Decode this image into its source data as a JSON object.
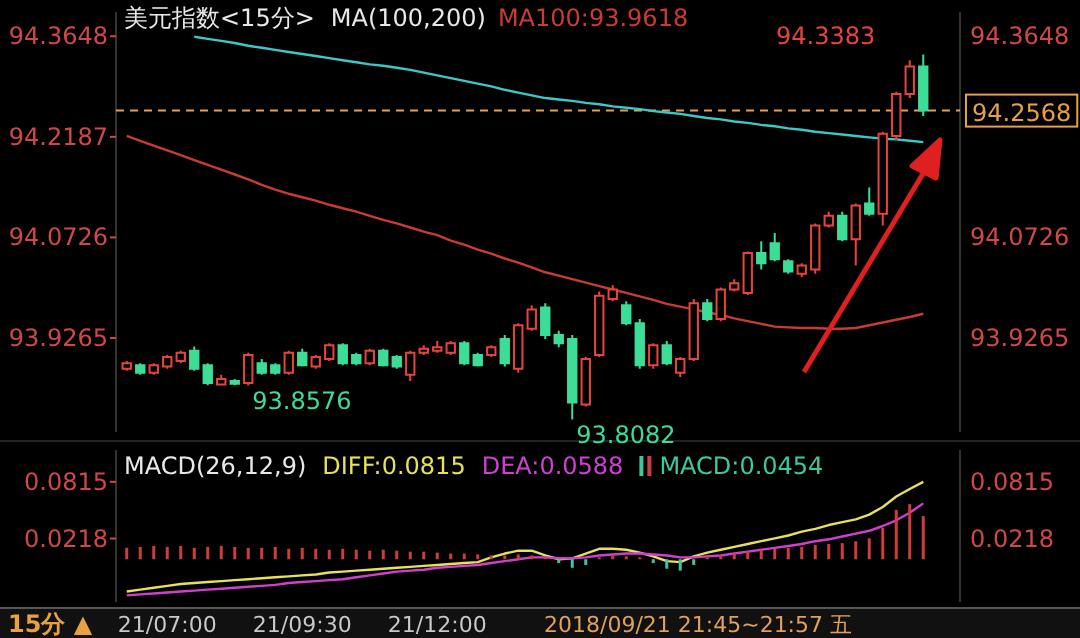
{
  "chart_data": [
    {
      "type": "candlestick",
      "title": "美元指数<15分>",
      "subtitle": "MA(100,200)",
      "tick_labels": "y",
      "categories": [
        null,
        null,
        null,
        null,
        null,
        null,
        null,
        null,
        null,
        null,
        null,
        null,
        null,
        null,
        null,
        null,
        null,
        null,
        null,
        null,
        null,
        null,
        null,
        null,
        null,
        null,
        null,
        null,
        null,
        null,
        null,
        null,
        null,
        null,
        null,
        null,
        null,
        null,
        null,
        null,
        null,
        null,
        null,
        null,
        null,
        null,
        null,
        null,
        null,
        null,
        null,
        null,
        null,
        null,
        null,
        null,
        null,
        null,
        null,
        null
      ],
      "ohlc": [
        [
          93.882,
          93.893,
          93.879,
          93.89
        ],
        [
          93.887,
          93.89,
          93.873,
          93.876
        ],
        [
          93.876,
          93.89,
          93.873,
          93.887
        ],
        [
          93.885,
          93.902,
          93.882,
          93.899
        ],
        [
          93.893,
          93.908,
          93.89,
          93.905
        ],
        [
          93.908,
          93.914,
          93.879,
          93.882
        ],
        [
          93.887,
          93.89,
          93.858,
          93.861
        ],
        [
          93.859,
          93.873,
          93.858,
          93.867
        ],
        [
          93.864,
          93.867,
          93.858,
          93.86
        ],
        [
          93.861,
          93.905,
          93.8576,
          93.902
        ],
        [
          93.89,
          93.896,
          93.873,
          93.876
        ],
        [
          93.887,
          93.89,
          93.873,
          93.876
        ],
        [
          93.876,
          93.908,
          93.873,
          93.905
        ],
        [
          93.905,
          93.911,
          93.885,
          93.887
        ],
        [
          93.885,
          93.902,
          93.882,
          93.899
        ],
        [
          93.896,
          93.919,
          93.893,
          93.916
        ],
        [
          93.916,
          93.919,
          93.887,
          93.89
        ],
        [
          93.902,
          93.905,
          93.887,
          93.89
        ],
        [
          93.89,
          93.911,
          93.887,
          93.908
        ],
        [
          93.908,
          93.911,
          93.885,
          93.887
        ],
        [
          93.899,
          93.902,
          93.882,
          93.885
        ],
        [
          93.873,
          93.908,
          93.864,
          93.905
        ],
        [
          93.905,
          93.916,
          93.902,
          93.911
        ],
        [
          93.908,
          93.922,
          93.905,
          93.913
        ],
        [
          93.905,
          93.922,
          93.902,
          93.919
        ],
        [
          93.919,
          93.922,
          93.887,
          93.89
        ],
        [
          93.902,
          93.905,
          93.885,
          93.887
        ],
        [
          93.902,
          93.916,
          93.899,
          93.913
        ],
        [
          93.925,
          93.931,
          93.885,
          93.89
        ],
        [
          93.882,
          93.948,
          93.876,
          93.945
        ],
        [
          93.94,
          93.974,
          93.937,
          93.968
        ],
        [
          93.971,
          93.977,
          93.925,
          93.931
        ],
        [
          93.931,
          93.937,
          93.913,
          93.919
        ],
        [
          93.925,
          93.931,
          93.8082,
          93.833
        ],
        [
          93.83,
          93.899,
          93.827,
          93.896
        ],
        [
          93.902,
          93.994,
          93.899,
          93.988
        ],
        [
          93.983,
          94.003,
          93.98,
          93.997
        ],
        [
          93.974,
          93.98,
          93.945,
          93.948
        ],
        [
          93.948,
          93.954,
          93.882,
          93.887
        ],
        [
          93.887,
          93.919,
          93.882,
          93.916
        ],
        [
          93.916,
          93.922,
          93.887,
          93.89
        ],
        [
          93.876,
          93.899,
          93.87,
          93.896
        ],
        [
          93.896,
          93.983,
          93.893,
          93.977
        ],
        [
          93.977,
          93.983,
          93.951,
          93.954
        ],
        [
          93.954,
          94.0,
          93.951,
          93.997
        ],
        [
          93.997,
          94.012,
          93.994,
          94.006
        ],
        [
          93.992,
          94.052,
          93.989,
          94.05
        ],
        [
          94.05,
          94.067,
          94.026,
          94.035
        ],
        [
          94.064,
          94.079,
          94.038,
          94.041
        ],
        [
          94.038,
          94.041,
          94.02,
          94.023
        ],
        [
          94.02,
          94.035,
          94.015,
          94.032
        ],
        [
          94.026,
          94.093,
          94.02,
          94.09
        ],
        [
          94.09,
          94.11,
          94.087,
          94.104
        ],
        [
          94.104,
          94.11,
          94.067,
          94.07
        ],
        [
          94.07,
          94.122,
          94.032,
          94.119
        ],
        [
          94.122,
          94.145,
          94.104,
          94.107
        ],
        [
          94.107,
          94.226,
          94.09,
          94.223
        ],
        [
          94.22,
          94.284,
          94.214,
          94.281
        ],
        [
          94.281,
          94.33,
          94.275,
          94.321
        ],
        [
          94.321,
          94.3383,
          94.249,
          94.2568
        ]
      ],
      "colors": [
        "#e8443c",
        "#3ddc97",
        "#e8443c",
        "#e8443c",
        "#e8443c",
        "#3ddc97",
        "#3ddc97",
        "#e8443c",
        "#3ddc97",
        "#e8443c",
        "#3ddc97",
        "#3ddc97",
        "#e8443c",
        "#3ddc97",
        "#e8443c",
        "#e8443c",
        "#3ddc97",
        "#3ddc97",
        "#e8443c",
        "#3ddc97",
        "#3ddc97",
        "#e8443c",
        "#e8443c",
        "#e8443c",
        "#e8443c",
        "#3ddc97",
        "#3ddc97",
        "#e8443c",
        "#3ddc97",
        "#e8443c",
        "#e8443c",
        "#3ddc97",
        "#3ddc97",
        "#3ddc97",
        "#e8443c",
        "#e8443c",
        "#e8443c",
        "#3ddc97",
        "#3ddc97",
        "#e8443c",
        "#3ddc97",
        "#e8443c",
        "#e8443c",
        "#3ddc97",
        "#e8443c",
        "#e8443c",
        "#e8443c",
        "#3ddc97",
        "#3ddc97",
        "#3ddc97",
        "#e8443c",
        "#e8443c",
        "#e8443c",
        "#3ddc97",
        "#e8443c",
        "#3ddc97",
        "#e8443c",
        "#e8443c",
        "#e8443c",
        "#3ddc97"
      ],
      "series": [
        {
          "name": "MA100:93.9618",
          "type": "line",
          "color": "#c83c32",
          "values": [
            94.22,
            94.213,
            94.206,
            94.199,
            94.192,
            94.185,
            94.178,
            94.171,
            94.164,
            94.157,
            94.149,
            94.142,
            94.136,
            94.131,
            94.126,
            94.12,
            94.115,
            94.11,
            94.104,
            94.098,
            94.093,
            94.087,
            94.081,
            94.076,
            94.068,
            94.062,
            94.055,
            94.049,
            94.042,
            94.036,
            94.029,
            94.022,
            94.017,
            94.012,
            94.007,
            94.002,
            93.997,
            93.992,
            93.987,
            93.982,
            93.976,
            93.972,
            93.968,
            93.964,
            93.96,
            93.955,
            93.951,
            93.947,
            93.943,
            93.942,
            93.941,
            93.941,
            93.94,
            93.94,
            93.941,
            93.945,
            93.949,
            93.953,
            93.957,
            93.9618
          ]
        },
        {
          "type": "line",
          "color": "#3cc8c8",
          "values": [
            null,
            null,
            null,
            null,
            null,
            94.364,
            94.361,
            94.358,
            94.355,
            94.351,
            94.348,
            94.345,
            94.342,
            94.339,
            94.336,
            94.333,
            94.33,
            94.327,
            94.324,
            94.322,
            94.319,
            94.316,
            94.312,
            94.308,
            94.304,
            94.3,
            94.296,
            94.292,
            94.287,
            94.283,
            94.279,
            94.275,
            94.273,
            94.271,
            94.268,
            94.266,
            94.263,
            94.261,
            94.259,
            94.256,
            94.254,
            94.252,
            94.249,
            94.246,
            94.244,
            94.241,
            94.239,
            94.236,
            94.234,
            94.231,
            94.229,
            94.226,
            94.224,
            94.222,
            94.22,
            94.218,
            94.216,
            94.215,
            94.213,
            94.211
          ]
        }
      ],
      "ylim": [
        93.79,
        94.4
      ],
      "yticks": [
        93.9265,
        94.0726,
        94.2187,
        94.3648
      ],
      "y2lim": [
        93.79,
        94.4
      ],
      "y2ticks": [
        93.9265,
        94.0726,
        94.3648
      ],
      "ref_lines": [
        {
          "axis": "y2",
          "value": 94.2568,
          "label": "94.2568",
          "color": "#e8a040",
          "line_style": "dashed"
        }
      ],
      "annotations": [
        "94.3383",
        "93.8576",
        "93.8082"
      ]
    },
    {
      "type": "line",
      "title": "MACD(26,12,9)",
      "categories": [
        null,
        null,
        null,
        "21/07:00",
        null,
        null,
        null,
        null,
        null,
        null,
        null,
        null,
        null,
        "21/09:30",
        null,
        null,
        null,
        null,
        null,
        null,
        null,
        null,
        null,
        "21/12:00",
        null,
        null,
        null,
        null,
        null,
        null,
        null,
        null,
        null,
        null,
        null,
        null,
        null,
        null,
        null,
        null,
        null,
        null,
        null,
        null,
        null,
        null,
        null,
        null,
        null,
        null,
        null,
        null,
        null,
        null,
        null,
        null,
        null,
        null,
        null,
        null
      ],
      "series": [
        {
          "name": "DIFF:0.0815",
          "type": "line",
          "color": "#e6e05a",
          "values": [
            -0.034,
            -0.032,
            -0.03,
            -0.028,
            -0.026,
            -0.025,
            -0.024,
            -0.023,
            -0.022,
            -0.021,
            -0.02,
            -0.019,
            -0.018,
            -0.017,
            -0.016,
            -0.014,
            -0.013,
            -0.012,
            -0.011,
            -0.01,
            -0.009,
            -0.008,
            -0.007,
            -0.006,
            -0.005,
            -0.004,
            -0.003,
            0.002,
            0.006,
            0.009,
            0.009,
            0.004,
            0.0,
            0.001,
            0.006,
            0.011,
            0.011,
            0.01,
            0.007,
            0.003,
            -0.002,
            -0.003,
            0.003,
            0.007,
            0.01,
            0.013,
            0.016,
            0.019,
            0.022,
            0.025,
            0.029,
            0.032,
            0.036,
            0.039,
            0.042,
            0.047,
            0.055,
            0.066,
            0.074,
            0.0815
          ]
        },
        {
          "name": "DEA:0.0588",
          "type": "line",
          "color": "#d040d0",
          "values": [
            -0.038,
            -0.037,
            -0.036,
            -0.035,
            -0.034,
            -0.033,
            -0.032,
            -0.031,
            -0.03,
            -0.029,
            -0.028,
            -0.027,
            -0.025,
            -0.024,
            -0.023,
            -0.022,
            -0.021,
            -0.019,
            -0.017,
            -0.015,
            -0.013,
            -0.012,
            -0.011,
            -0.009,
            -0.008,
            -0.007,
            -0.006,
            -0.004,
            -0.002,
            0.0,
            0.002,
            0.002,
            0.001,
            0.001,
            0.002,
            0.004,
            0.005,
            0.006,
            0.006,
            0.005,
            0.004,
            0.002,
            0.002,
            0.003,
            0.004,
            0.006,
            0.008,
            0.01,
            0.012,
            0.014,
            0.016,
            0.019,
            0.021,
            0.024,
            0.027,
            0.03,
            0.035,
            0.041,
            0.049,
            0.0588
          ]
        },
        {
          "name": "MACD:0.0454",
          "type": "bar",
          "color": "#3cc8a0",
          "values": [
            0.012,
            0.013,
            0.014,
            0.013,
            0.014,
            0.012,
            0.013,
            0.014,
            0.013,
            0.012,
            0.012,
            0.013,
            0.011,
            0.012,
            0.011,
            0.01,
            0.011,
            0.01,
            0.009,
            0.01,
            0.009,
            0.008,
            0.008,
            0.007,
            0.006,
            0.006,
            0.005,
            0.004,
            0.004,
            0.005,
            0.004,
            0.002,
            -0.004,
            -0.009,
            -0.006,
            0.002,
            0.004,
            0.003,
            0.002,
            -0.004,
            -0.01,
            -0.012,
            -0.006,
            0.002,
            0.004,
            0.006,
            0.008,
            0.01,
            0.011,
            0.012,
            0.013,
            0.015,
            0.016,
            0.017,
            0.019,
            0.022,
            0.033,
            0.052,
            0.058,
            0.0454
          ],
          "colors": [
            "#d03c3c",
            "#d03c3c",
            "#d03c3c",
            "#d03c3c",
            "#d03c3c",
            "#d03c3c",
            "#d03c3c",
            "#d03c3c",
            "#d03c3c",
            "#d03c3c",
            "#d03c3c",
            "#d03c3c",
            "#d03c3c",
            "#d03c3c",
            "#d03c3c",
            "#d03c3c",
            "#d03c3c",
            "#d03c3c",
            "#d03c3c",
            "#d03c3c",
            "#d03c3c",
            "#d03c3c",
            "#d03c3c",
            "#d03c3c",
            "#d03c3c",
            "#d03c3c",
            "#d03c3c",
            "#d03c3c",
            "#d03c3c",
            "#d03c3c",
            "#d03c3c",
            "#d03c3c",
            "#3cc8a0",
            "#3cc8a0",
            "#3cc8a0",
            "#d03c3c",
            "#d03c3c",
            "#d03c3c",
            "#d03c3c",
            "#3cc8a0",
            "#3cc8a0",
            "#3cc8a0",
            "#3cc8a0",
            "#d03c3c",
            "#d03c3c",
            "#d03c3c",
            "#d03c3c",
            "#d03c3c",
            "#d03c3c",
            "#d03c3c",
            "#d03c3c",
            "#d03c3c",
            "#d03c3c",
            "#d03c3c",
            "#d03c3c",
            "#d03c3c",
            "#d03c3c",
            "#d03c3c",
            "#d03c3c",
            "#d03c3c"
          ]
        }
      ],
      "ylim": [
        -0.045,
        0.115
      ],
      "yticks": [
        0.0218,
        0.0815
      ],
      "y2lim": [
        -0.045,
        0.115
      ],
      "y2ticks": [
        0.0218,
        0.0815
      ],
      "annotations": [
        "15分 ▲",
        "2018/09/21 21:45~21:57 五"
      ]
    }
  ]
}
